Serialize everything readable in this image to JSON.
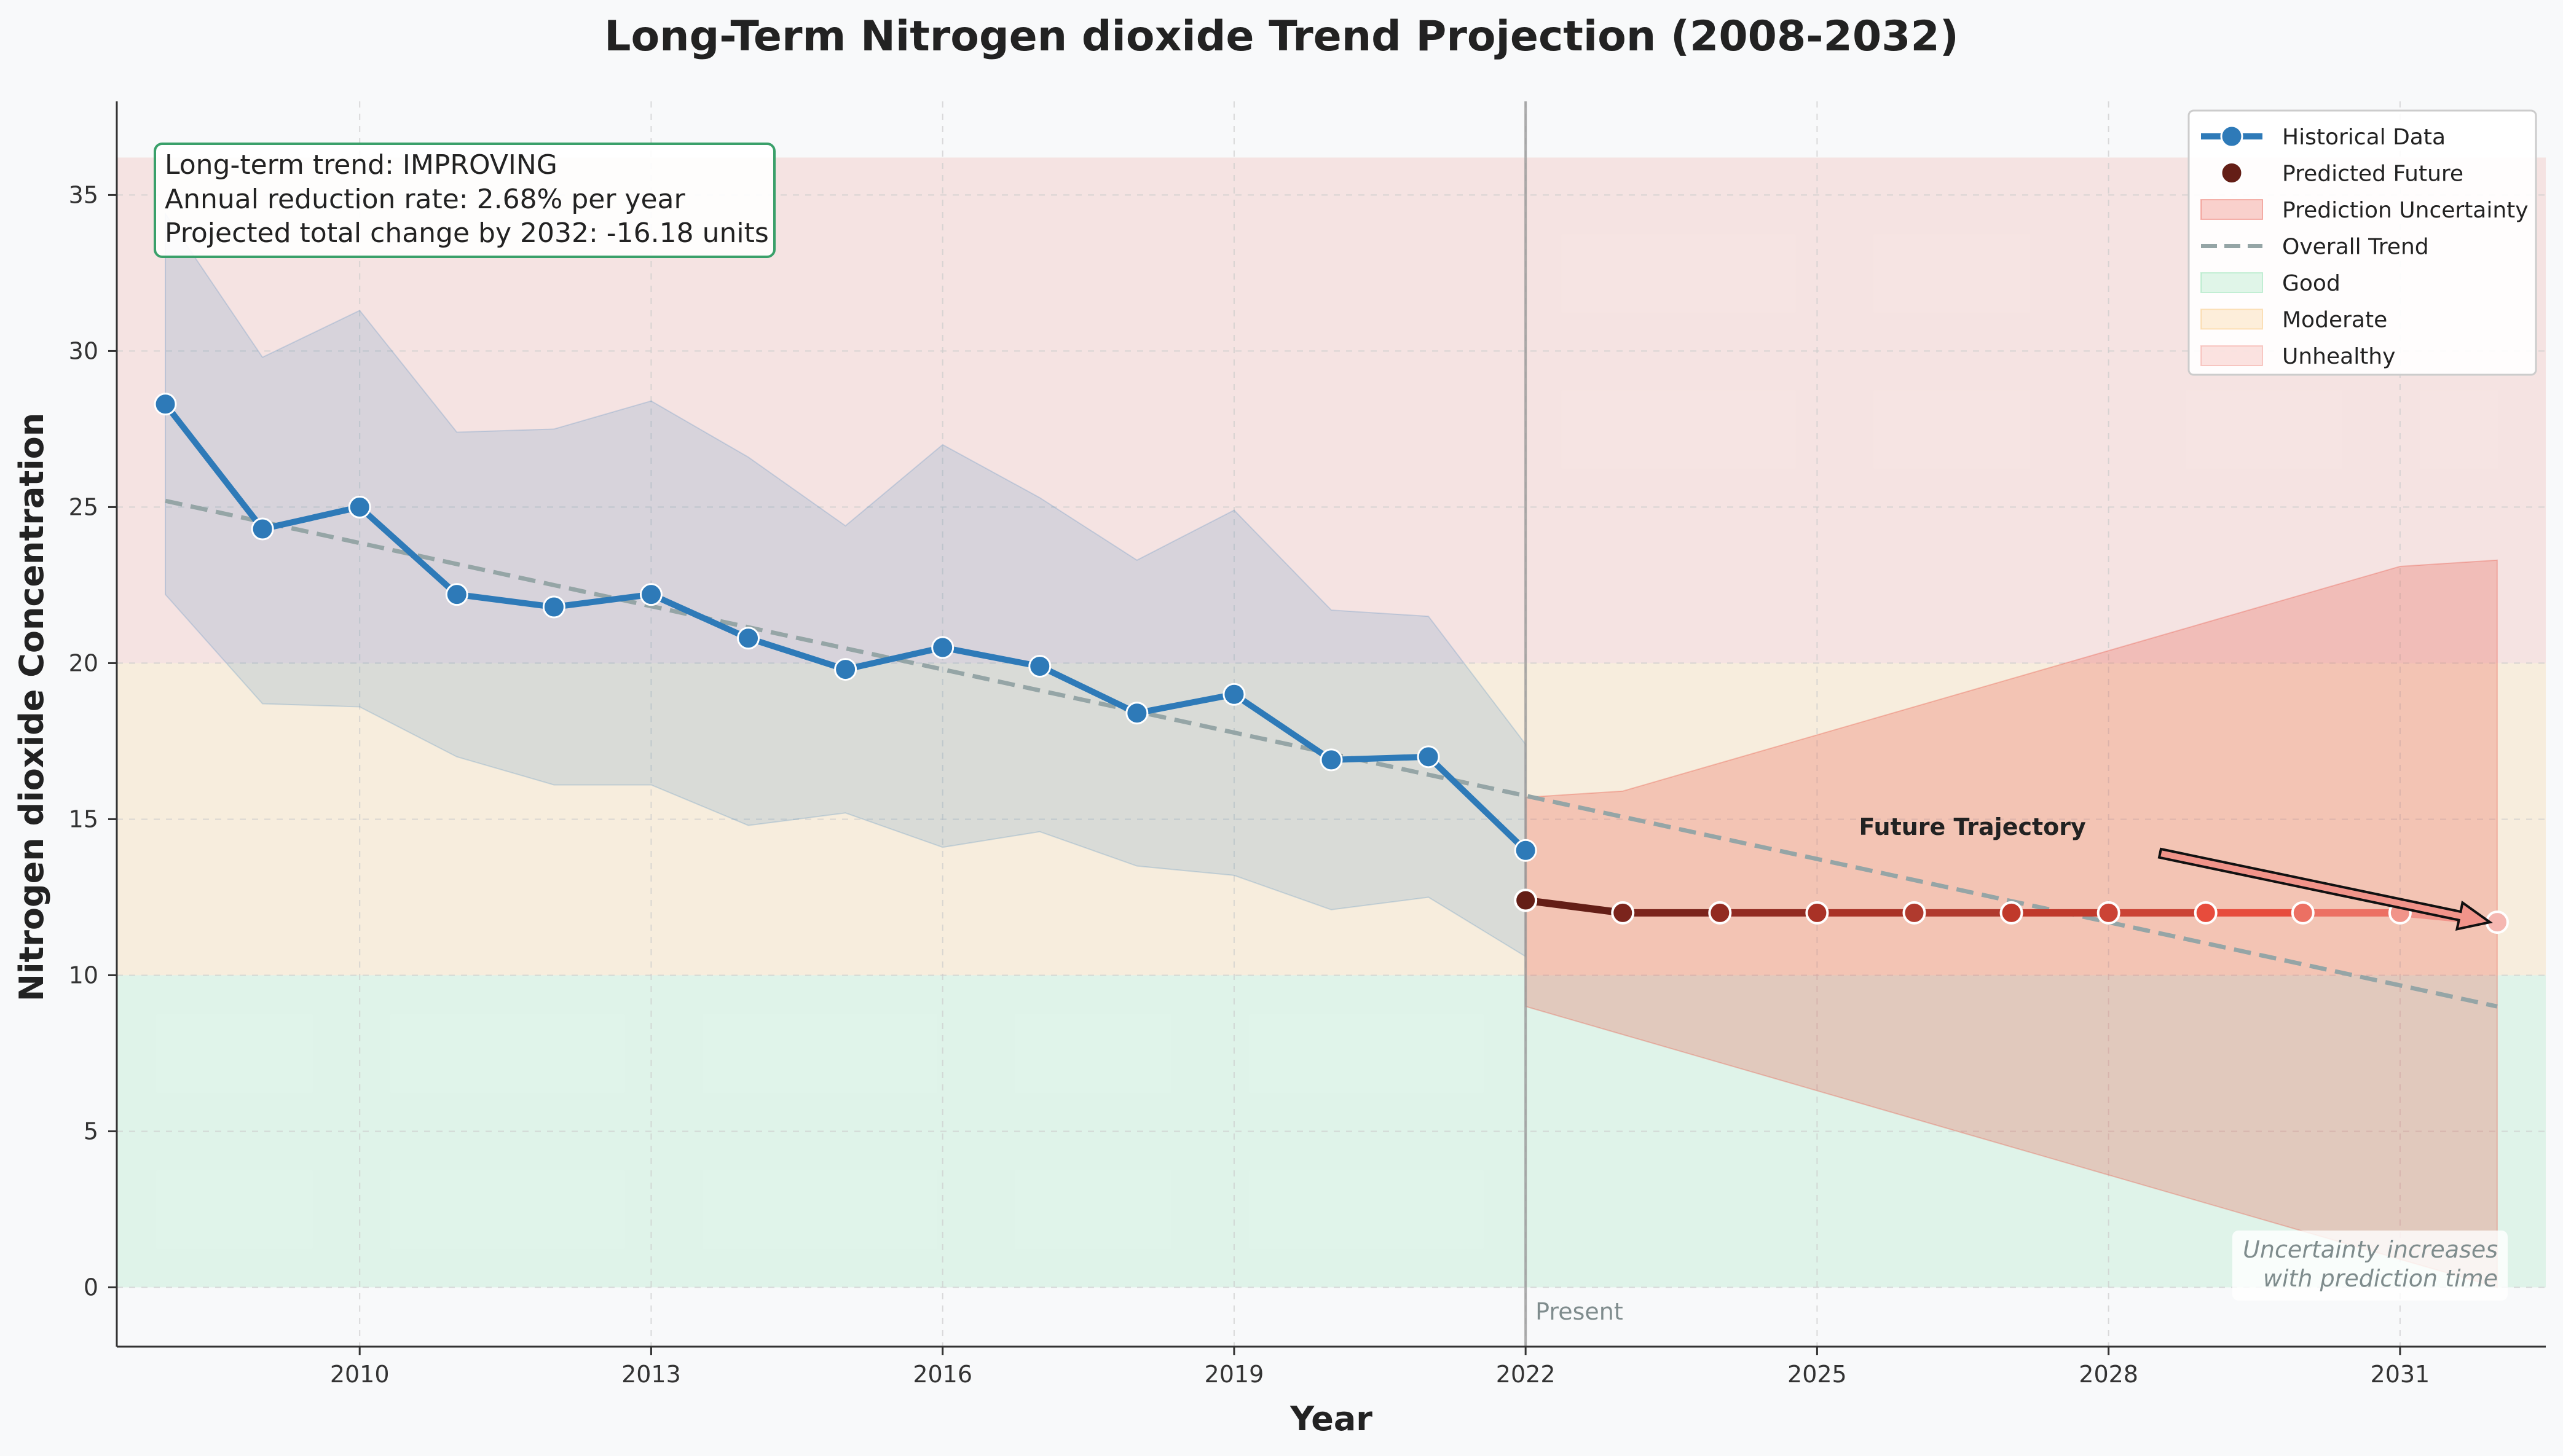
{
  "chart_data": {
    "type": "line",
    "title": "Long-Term Nitrogen dioxide Trend Projection (2008-2032)",
    "xlabel": "Year",
    "ylabel": "Nitrogen dioxide Concentration",
    "xlim": [
      2007.5,
      2032.5
    ],
    "ylim": [
      -1.9,
      38
    ],
    "x_ticks": [
      2010,
      2013,
      2016,
      2019,
      2022,
      2025,
      2028,
      2031
    ],
    "y_ticks": [
      0,
      5,
      10,
      15,
      20,
      25,
      30,
      35
    ],
    "grid": true,
    "legend_position": "top-right",
    "zones": [
      {
        "name": "Good",
        "range": [
          0,
          10
        ],
        "color": "#2ecc71"
      },
      {
        "name": "Moderate",
        "range": [
          10,
          20
        ],
        "color": "#f39c12"
      },
      {
        "name": "Unhealthy",
        "range": [
          20,
          36.2
        ],
        "color": "#e74c3c"
      }
    ],
    "series": [
      {
        "name": "Historical Data",
        "color": "#2e7ab8",
        "x": [
          2008,
          2009,
          2010,
          2011,
          2012,
          2013,
          2014,
          2015,
          2016,
          2017,
          2018,
          2019,
          2020,
          2021,
          2022
        ],
        "values": [
          28.3,
          24.3,
          25.0,
          22.2,
          21.8,
          22.2,
          20.8,
          19.8,
          20.5,
          19.9,
          18.4,
          19.0,
          16.9,
          17.0,
          14.0
        ],
        "upper": [
          34.4,
          29.8,
          31.3,
          27.4,
          27.5,
          28.4,
          26.6,
          24.4,
          27.0,
          25.3,
          23.3,
          24.9,
          21.7,
          21.5,
          17.4
        ],
        "lower": [
          22.2,
          18.7,
          18.6,
          17.0,
          16.1,
          16.1,
          14.8,
          15.2,
          14.1,
          14.6,
          13.5,
          13.2,
          12.1,
          12.5,
          10.6
        ]
      },
      {
        "name": "Predicted Future",
        "x": [
          2022,
          2023,
          2024,
          2025,
          2026,
          2027,
          2028,
          2029,
          2030,
          2031,
          2032
        ],
        "values": [
          12.4,
          12.0,
          12.0,
          12.0,
          12.0,
          12.0,
          12.0,
          12.0,
          12.0,
          12.0,
          11.7
        ],
        "colors": [
          "#641e16",
          "#7b241c",
          "#922b21",
          "#a93226",
          "#b03a2e",
          "#c0392b",
          "#cb4335",
          "#e74c3c",
          "#ec7063",
          "#f1948a",
          "#f5b7b1"
        ]
      },
      {
        "name": "Prediction Uncertainty",
        "color": "#e74c3c",
        "x": [
          2022,
          2023,
          2024,
          2025,
          2026,
          2027,
          2028,
          2029,
          2030,
          2031,
          2032
        ],
        "upper": [
          15.7,
          15.9,
          16.8,
          17.7,
          18.6,
          19.5,
          20.4,
          21.3,
          22.2,
          23.1,
          23.3
        ],
        "lower": [
          9.0,
          8.1,
          7.2,
          6.3,
          5.4,
          4.5,
          3.6,
          2.7,
          1.8,
          0.9,
          0.0
        ]
      },
      {
        "name": "Overall Trend",
        "color": "#95a5a6",
        "x": [
          2008,
          2032
        ],
        "values": [
          25.2,
          9.0
        ]
      }
    ],
    "legend": [
      "Historical Data",
      "Predicted Future",
      "Prediction Uncertainty",
      "Overall Trend",
      "Good",
      "Moderate",
      "Unhealthy"
    ],
    "present_line": {
      "x": 2022,
      "label": "Present"
    },
    "info_box": [
      "Long-term trend: IMPROVING",
      "Annual reduction rate: 2.68% per year",
      "Projected total change by 2032: -16.18 units"
    ],
    "annotation": {
      "text": "Future Trajectory",
      "text_at": [
        2026,
        14.5
      ],
      "arrow_to": [
        2032,
        11.7
      ]
    },
    "note": [
      "Uncertainty increases",
      "with prediction time"
    ]
  }
}
